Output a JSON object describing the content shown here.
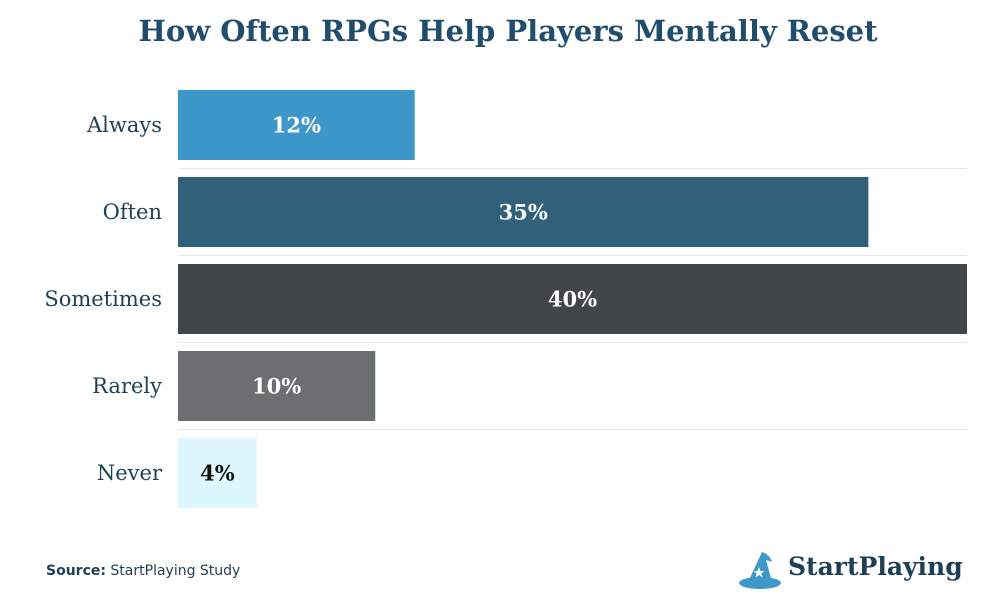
{
  "chart_data": {
    "type": "bar",
    "orientation": "horizontal",
    "title": "How Often RPGs Help Players Mentally Reset",
    "categories": [
      "Always",
      "Often",
      "Sometimes",
      "Rarely",
      "Never"
    ],
    "values": [
      12,
      35,
      40,
      10,
      4
    ],
    "value_labels": [
      "12%",
      "35%",
      "40%",
      "10%",
      "4%"
    ],
    "xlim": [
      0,
      40
    ],
    "xlabel": "",
    "ylabel": "",
    "grid": false,
    "bar_colors": [
      "#3d97c9",
      "#31617a",
      "#414649",
      "#6c6f70",
      "#def7ff"
    ],
    "label_colors": [
      "#ffffff",
      "#ffffff",
      "#ffffff",
      "#ffffff",
      "#111111"
    ]
  },
  "source": {
    "prefix": "Source:",
    "text": "StartPlaying Study"
  },
  "brand": {
    "name": "StartPlaying",
    "logo_icon": "wizard-hat-icon"
  },
  "colors": {
    "title": "#1f4d6b",
    "text": "#1f3f56",
    "separator": "#e6e6e6"
  }
}
